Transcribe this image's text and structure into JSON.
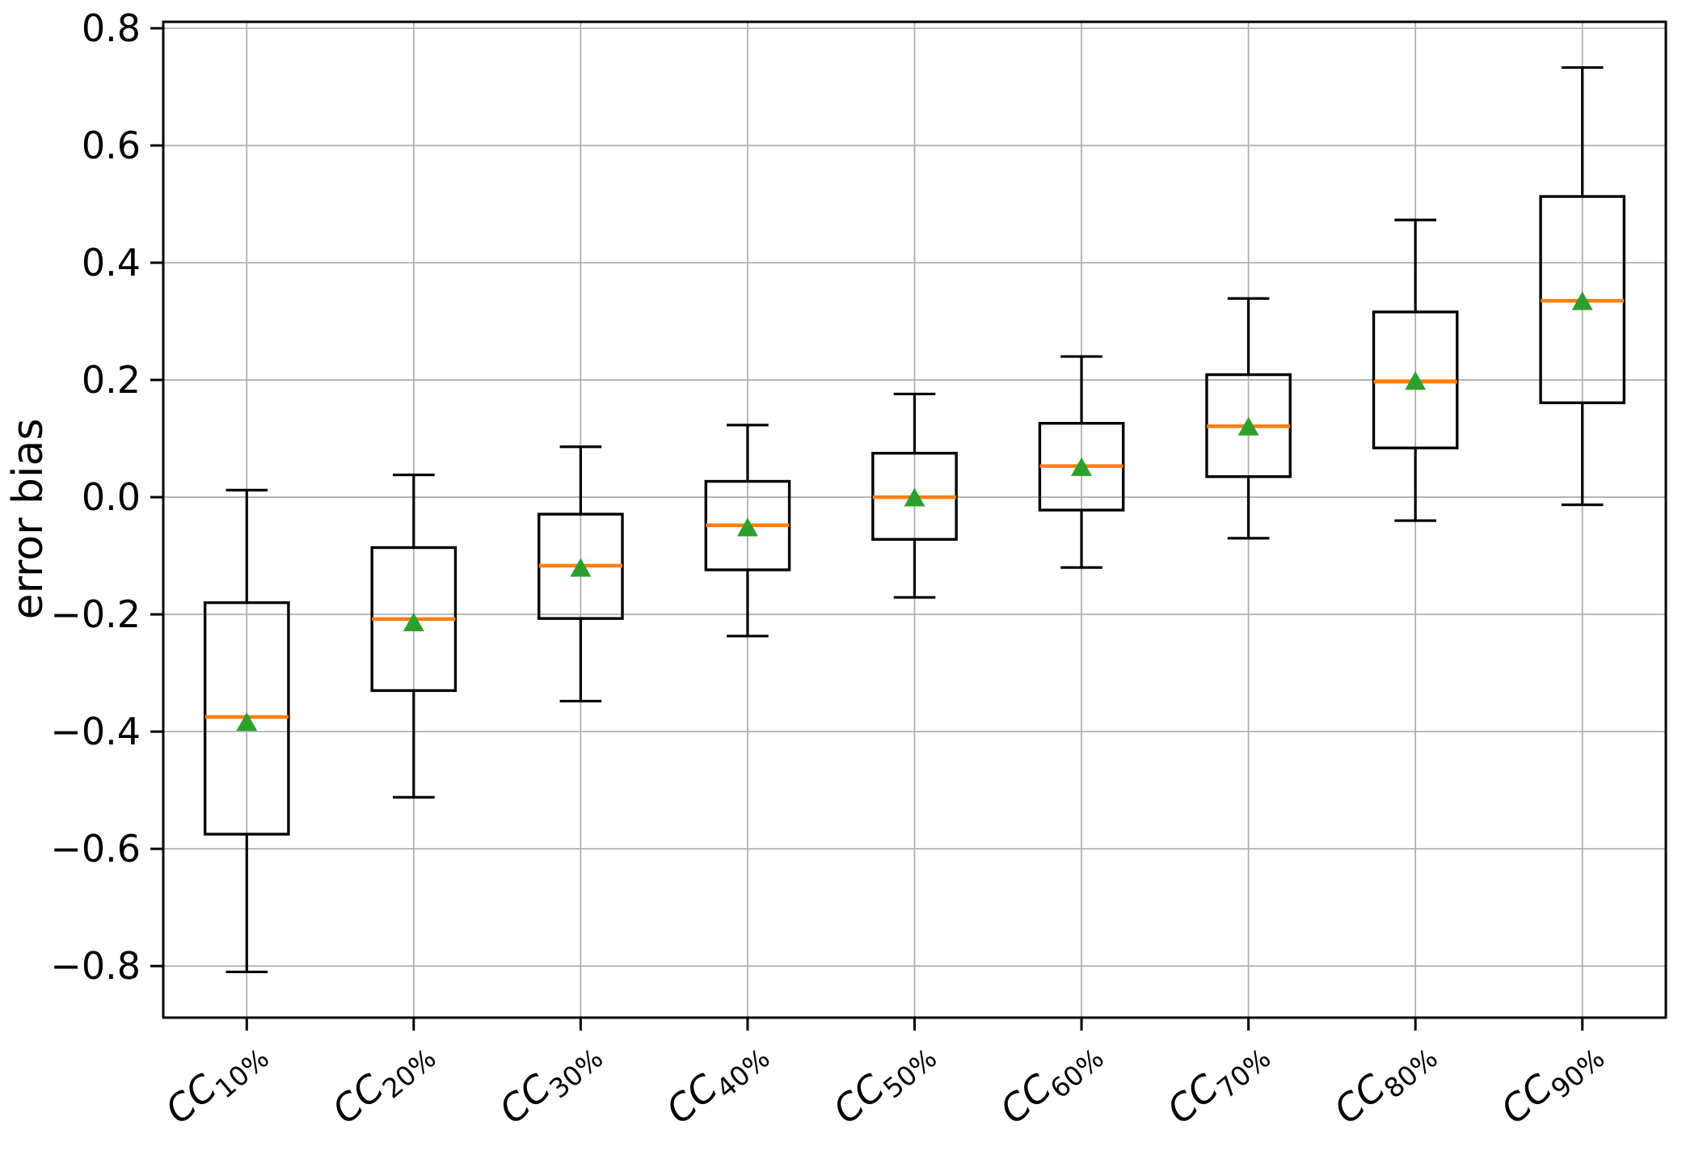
{
  "chart_data": {
    "type": "boxplot",
    "title": "",
    "xlabel": "",
    "ylabel": "error bias",
    "ylim": [
      -0.888,
      0.811
    ],
    "yticks": [
      0.8,
      0.6,
      0.4,
      0.2,
      0.0,
      -0.2,
      -0.4,
      -0.6,
      -0.8
    ],
    "ytick_labels": [
      "0.8",
      "0.6",
      "0.4",
      "0.2",
      "0.0",
      "−0.2",
      "−0.4",
      "−0.6",
      "−0.8"
    ],
    "grid": true,
    "legend": "none",
    "x_label_rotation_deg": 40,
    "categories": [
      {
        "base": "CC",
        "sub": "10%"
      },
      {
        "base": "CC",
        "sub": "20%"
      },
      {
        "base": "CC",
        "sub": "30%"
      },
      {
        "base": "CC",
        "sub": "40%"
      },
      {
        "base": "CC",
        "sub": "50%"
      },
      {
        "base": "CC",
        "sub": "60%"
      },
      {
        "base": "CC",
        "sub": "70%"
      },
      {
        "base": "CC",
        "sub": "80%"
      },
      {
        "base": "CC",
        "sub": "90%"
      }
    ],
    "boxes": [
      {
        "label": "CC10%",
        "whislo": -0.81,
        "q1": -0.575,
        "med": -0.375,
        "mean": -0.385,
        "q3": -0.18,
        "whishi": 0.012
      },
      {
        "label": "CC20%",
        "whislo": -0.512,
        "q1": -0.33,
        "med": -0.208,
        "mean": -0.215,
        "q3": -0.086,
        "whishi": 0.038
      },
      {
        "label": "CC30%",
        "whislo": -0.348,
        "q1": -0.207,
        "med": -0.117,
        "mean": -0.122,
        "q3": -0.029,
        "whishi": 0.086
      },
      {
        "label": "CC40%",
        "whislo": -0.237,
        "q1": -0.124,
        "med": -0.048,
        "mean": -0.053,
        "q3": 0.027,
        "whishi": 0.123
      },
      {
        "label": "CC50%",
        "whislo": -0.171,
        "q1": -0.072,
        "med": 0.0,
        "mean": -0.002,
        "q3": 0.075,
        "whishi": 0.176
      },
      {
        "label": "CC60%",
        "whislo": -0.12,
        "q1": -0.022,
        "med": 0.053,
        "mean": 0.05,
        "q3": 0.126,
        "whishi": 0.24
      },
      {
        "label": "CC70%",
        "whislo": -0.07,
        "q1": 0.035,
        "med": 0.121,
        "mean": 0.119,
        "q3": 0.209,
        "whishi": 0.339
      },
      {
        "label": "CC80%",
        "whislo": -0.04,
        "q1": 0.084,
        "med": 0.197,
        "mean": 0.197,
        "q3": 0.316,
        "whishi": 0.473
      },
      {
        "label": "CC90%",
        "whislo": -0.013,
        "q1": 0.161,
        "med": 0.335,
        "mean": 0.333,
        "q3": 0.513,
        "whishi": 0.733
      }
    ],
    "colors": {
      "box_edge": "#000000",
      "median": "#ff7f0e",
      "mean_marker": "#2ca02c",
      "grid": "#b0b0b0",
      "axis": "#000000",
      "background": "#ffffff"
    }
  }
}
